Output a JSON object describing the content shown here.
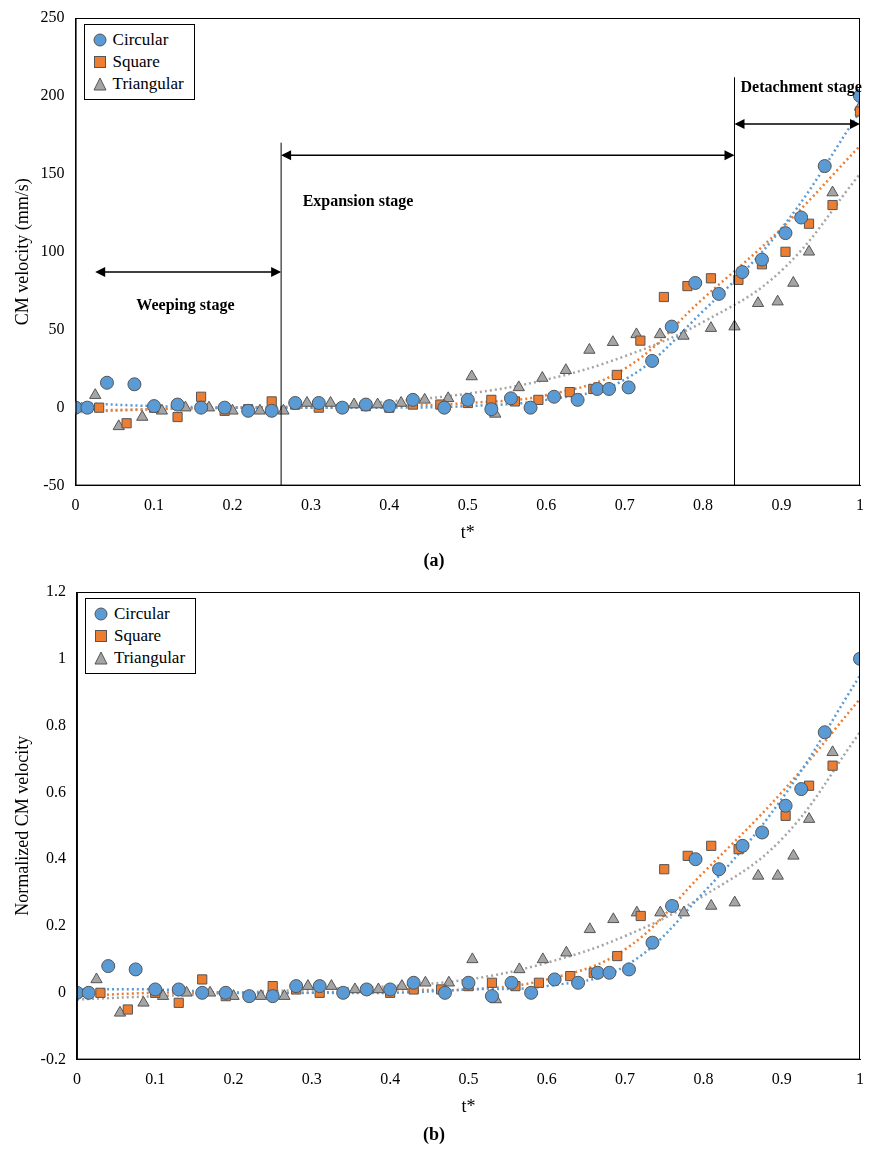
{
  "chart_data": [
    {
      "type": "scatter",
      "title": "(a)",
      "x_label": "t*",
      "y_label": "CM velocity (mm/s)",
      "xlim": [
        0,
        1
      ],
      "xticks": [
        0,
        0.1,
        0.2,
        0.3,
        0.4,
        0.5,
        0.6,
        0.7,
        0.8,
        0.9,
        1
      ],
      "ylim": [
        -50,
        250
      ],
      "yticks": [
        -50,
        0,
        50,
        100,
        150,
        200,
        250
      ],
      "grid": false,
      "legend": "upper left",
      "series": [
        {
          "name": "Circular",
          "color": "#5b9bd5",
          "marker": "circle",
          "x": [
            0,
            0.015,
            0.04,
            0.075,
            0.1,
            0.13,
            0.16,
            0.19,
            0.22,
            0.25,
            0.28,
            0.31,
            0.34,
            0.37,
            0.4,
            0.43,
            0.47,
            0.5,
            0.53,
            0.555,
            0.58,
            0.61,
            0.64,
            0.665,
            0.68,
            0.705,
            0.735,
            0.76,
            0.79,
            0.82,
            0.85,
            0.875,
            0.905,
            0.925,
            0.955,
            1
          ],
          "values": [
            0,
            0,
            16,
            15,
            1,
            2,
            0,
            0,
            -2,
            -2,
            3,
            3,
            0,
            2,
            1,
            5,
            0,
            5,
            -1,
            6,
            0,
            7,
            5,
            12,
            12,
            13,
            30,
            52,
            80,
            73,
            87,
            95,
            112,
            122,
            155,
            200
          ],
          "trend": {
            "x": [
              0,
              0.1,
              0.2,
              0.3,
              0.4,
              0.5,
              0.6,
              0.7,
              0.8,
              0.9,
              1
            ],
            "values": [
              3,
              1,
              0,
              0,
              0,
              1,
              5,
              18,
              62,
              115,
              190
            ],
            "line_style": "dotted"
          }
        },
        {
          "name": "Square",
          "color": "#ed7d31",
          "marker": "square",
          "x": [
            0,
            0.03,
            0.065,
            0.1,
            0.13,
            0.16,
            0.19,
            0.22,
            0.25,
            0.28,
            0.31,
            0.34,
            0.37,
            0.4,
            0.43,
            0.465,
            0.5,
            0.53,
            0.56,
            0.59,
            0.63,
            0.66,
            0.69,
            0.72,
            0.75,
            0.78,
            0.81,
            0.845,
            0.875,
            0.905,
            0.935,
            0.965,
            1
          ],
          "values": [
            0,
            0,
            -10,
            0,
            -6,
            7,
            -2,
            -1,
            4,
            2,
            0,
            0,
            1,
            0,
            2,
            2,
            3,
            5,
            4,
            5,
            10,
            12,
            21,
            43,
            71,
            78,
            83,
            82,
            92,
            100,
            118,
            130,
            190
          ],
          "trend": {
            "x": [
              0,
              0.1,
              0.2,
              0.3,
              0.4,
              0.5,
              0.6,
              0.7,
              0.8,
              0.9,
              1
            ],
            "values": [
              -2,
              -1,
              0,
              0,
              1,
              3,
              8,
              25,
              70,
              115,
              168
            ],
            "line_style": "dotted"
          }
        },
        {
          "name": "Triangular",
          "color": "#a5a5a5",
          "marker": "triangle",
          "x": [
            0,
            0.025,
            0.055,
            0.085,
            0.11,
            0.14,
            0.17,
            0.2,
            0.235,
            0.265,
            0.295,
            0.325,
            0.355,
            0.385,
            0.415,
            0.445,
            0.475,
            0.505,
            0.535,
            0.565,
            0.595,
            0.625,
            0.655,
            0.685,
            0.715,
            0.745,
            0.775,
            0.81,
            0.84,
            0.87,
            0.895,
            0.915,
            0.935,
            0.965,
            1
          ],
          "values": [
            0,
            8,
            -12,
            -6,
            -2,
            0,
            0,
            -2,
            -2,
            -2,
            3,
            3,
            2,
            2,
            3,
            5,
            6,
            20,
            -4,
            13,
            19,
            24,
            37,
            42,
            47,
            47,
            46,
            51,
            52,
            67,
            68,
            80,
            100,
            138,
            193
          ],
          "trend": {
            "x": [
              0,
              0.1,
              0.2,
              0.3,
              0.4,
              0.5,
              0.6,
              0.7,
              0.8,
              0.9,
              1
            ],
            "values": [
              -3,
              -1,
              0,
              1,
              4,
              9,
              18,
              33,
              55,
              88,
              150
            ],
            "line_style": "dotted"
          }
        }
      ],
      "stage_lines": [
        {
          "x": 0.262,
          "y_range": [
            -50,
            170
          ]
        },
        {
          "x": 0.84,
          "y_range": [
            -50,
            212
          ]
        }
      ],
      "annotations": [
        {
          "text": "Weeping stage",
          "x_range": [
            0.025,
            0.262
          ],
          "y": 87,
          "label_x": 0.14,
          "label_y": 65
        },
        {
          "text": "Expansion stage",
          "x_range": [
            0.262,
            0.84
          ],
          "y": 162,
          "label_x": 0.36,
          "label_y": 132
        },
        {
          "text": "Detachment stage",
          "x_range": [
            0.84,
            1
          ],
          "y": 182,
          "label_x": 0.925,
          "label_y": 205
        }
      ]
    },
    {
      "type": "scatter",
      "title": "(b)",
      "x_label": "t*",
      "y_label": "Normalized CM velocity",
      "xlim": [
        0,
        1
      ],
      "xticks": [
        0,
        0.1,
        0.2,
        0.3,
        0.4,
        0.5,
        0.6,
        0.7,
        0.8,
        0.9,
        1
      ],
      "ylim": [
        -0.2,
        1.2
      ],
      "yticks": [
        -0.2,
        0,
        0.2,
        0.4,
        0.6,
        0.8,
        1,
        1.2
      ],
      "grid": false,
      "legend": "upper left",
      "series": [
        {
          "name": "Circular",
          "color": "#5b9bd5",
          "marker": "circle",
          "x": [
            0,
            0.015,
            0.04,
            0.075,
            0.1,
            0.13,
            0.16,
            0.19,
            0.22,
            0.25,
            0.28,
            0.31,
            0.34,
            0.37,
            0.4,
            0.43,
            0.47,
            0.5,
            0.53,
            0.555,
            0.58,
            0.61,
            0.64,
            0.665,
            0.68,
            0.705,
            0.735,
            0.76,
            0.79,
            0.82,
            0.85,
            0.875,
            0.905,
            0.925,
            0.955,
            1
          ],
          "values": [
            0,
            0,
            0.08,
            0.07,
            0.01,
            0.01,
            0,
            0,
            -0.01,
            -0.01,
            0.02,
            0.02,
            0,
            0.01,
            0.01,
            0.03,
            0,
            0.03,
            -0.01,
            0.03,
            0,
            0.04,
            0.03,
            0.06,
            0.06,
            0.07,
            0.15,
            0.26,
            0.4,
            0.37,
            0.44,
            0.48,
            0.56,
            0.61,
            0.78,
            1
          ],
          "trend": {
            "x": [
              0,
              0.1,
              0.2,
              0.3,
              0.4,
              0.5,
              0.6,
              0.7,
              0.8,
              0.9,
              1
            ],
            "values": [
              0.01,
              0.01,
              0,
              0,
              0,
              0.01,
              0.02,
              0.08,
              0.3,
              0.58,
              0.95
            ],
            "line_style": "dotted"
          }
        },
        {
          "name": "Square",
          "color": "#ed7d31",
          "marker": "square",
          "x": [
            0,
            0.03,
            0.065,
            0.1,
            0.13,
            0.16,
            0.19,
            0.22,
            0.25,
            0.28,
            0.31,
            0.34,
            0.37,
            0.4,
            0.43,
            0.465,
            0.5,
            0.53,
            0.56,
            0.59,
            0.63,
            0.66,
            0.69,
            0.72,
            0.75,
            0.78,
            0.81,
            0.845,
            0.875,
            0.905,
            0.935,
            0.965,
            1
          ],
          "values": [
            0,
            0,
            -0.05,
            0,
            -0.03,
            0.04,
            -0.01,
            -0.01,
            0.02,
            0.01,
            0,
            0,
            0.01,
            0,
            0.01,
            0.01,
            0.02,
            0.03,
            0.02,
            0.03,
            0.05,
            0.06,
            0.11,
            0.23,
            0.37,
            0.41,
            0.44,
            0.43,
            0.48,
            0.53,
            0.62,
            0.68,
            1
          ],
          "trend": {
            "x": [
              0,
              0.1,
              0.2,
              0.3,
              0.4,
              0.5,
              0.6,
              0.7,
              0.8,
              0.9,
              1
            ],
            "values": [
              -0.01,
              0,
              0,
              0,
              0.01,
              0.01,
              0.04,
              0.13,
              0.36,
              0.6,
              0.88
            ],
            "line_style": "dotted"
          }
        },
        {
          "name": "Triangular",
          "color": "#a5a5a5",
          "marker": "triangle",
          "x": [
            0,
            0.025,
            0.055,
            0.085,
            0.11,
            0.14,
            0.17,
            0.2,
            0.235,
            0.265,
            0.295,
            0.325,
            0.355,
            0.385,
            0.415,
            0.445,
            0.475,
            0.505,
            0.535,
            0.565,
            0.595,
            0.625,
            0.655,
            0.685,
            0.715,
            0.745,
            0.775,
            0.81,
            0.84,
            0.87,
            0.895,
            0.915,
            0.935,
            0.965,
            1
          ],
          "values": [
            0,
            0.04,
            -0.06,
            -0.03,
            -0.01,
            0,
            0,
            -0.01,
            -0.01,
            -0.01,
            0.02,
            0.02,
            0.01,
            0.01,
            0.02,
            0.03,
            0.03,
            0.1,
            -0.02,
            0.07,
            0.1,
            0.12,
            0.19,
            0.22,
            0.24,
            0.24,
            0.24,
            0.26,
            0.27,
            0.35,
            0.35,
            0.41,
            0.52,
            0.72,
            1
          ],
          "trend": {
            "x": [
              0,
              0.1,
              0.2,
              0.3,
              0.4,
              0.5,
              0.6,
              0.7,
              0.8,
              0.9,
              1
            ],
            "values": [
              -0.02,
              -0.01,
              0,
              0.01,
              0.02,
              0.04,
              0.09,
              0.17,
              0.29,
              0.46,
              0.78
            ],
            "line_style": "dotted"
          }
        }
      ]
    }
  ]
}
